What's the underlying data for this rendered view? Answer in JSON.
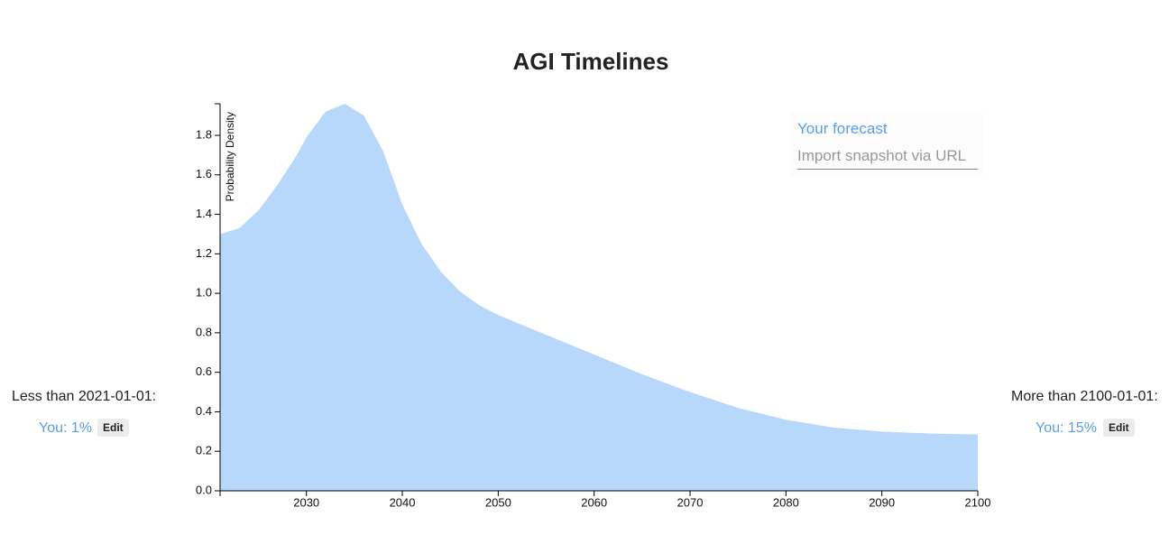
{
  "chart_data": {
    "type": "area",
    "title": "AGI Timelines",
    "y_label": "Probability Density",
    "x": [
      2021,
      2023,
      2025,
      2027,
      2029,
      2030,
      2032,
      2034,
      2036,
      2038,
      2040,
      2042,
      2044,
      2046,
      2048,
      2050,
      2055,
      2060,
      2065,
      2070,
      2075,
      2080,
      2085,
      2090,
      2095,
      2100
    ],
    "series": [
      {
        "name": "Your forecast",
        "color": "#b8d8fb",
        "values": [
          1.3,
          1.33,
          1.42,
          1.55,
          1.7,
          1.79,
          1.92,
          1.96,
          1.9,
          1.72,
          1.45,
          1.25,
          1.11,
          1.01,
          0.94,
          0.89,
          0.79,
          0.69,
          0.59,
          0.5,
          0.42,
          0.36,
          0.32,
          0.3,
          0.29,
          0.285
        ]
      }
    ],
    "xlim": [
      2021,
      2100
    ],
    "ylim": [
      0,
      1.96
    ],
    "xticks": [
      2030,
      2040,
      2050,
      2060,
      2070,
      2080,
      2090,
      2100
    ],
    "yticks": [
      {
        "value": 0,
        "label": "0.0"
      },
      0.2,
      0.4,
      0.6,
      0.8,
      {
        "value": 1,
        "label": "1.0"
      },
      1.2,
      1.4,
      1.6,
      1.8
    ]
  },
  "legend": {
    "input_placeholder": "Import snapshot via URL"
  },
  "left_panel": {
    "label": "Less than 2021-01-01:",
    "value": "You: 1%",
    "button": "Edit"
  },
  "right_panel": {
    "label": "More than 2100-01-01:",
    "value": "You: 15%",
    "button": "Edit"
  }
}
